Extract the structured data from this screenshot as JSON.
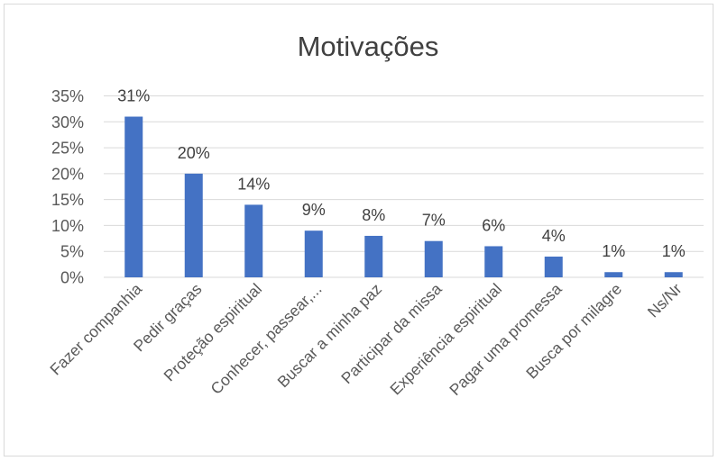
{
  "chart_data": {
    "type": "bar",
    "title": "Motivações",
    "categories": [
      "Fazer companhia",
      "Pedir graças",
      "Proteção espiritual",
      "Conhecer, passear,...",
      "Buscar a minha paz",
      "Participar da missa",
      "Experiência espiritual",
      "Pagar uma promessa",
      "Busca por milagre",
      "Ns/Nr"
    ],
    "values": [
      31,
      20,
      14,
      9,
      8,
      7,
      6,
      4,
      1,
      1
    ],
    "data_labels": [
      "31%",
      "20%",
      "14%",
      "9%",
      "8%",
      "7%",
      "6%",
      "4%",
      "1%",
      "1%"
    ],
    "y_ticks": [
      0,
      5,
      10,
      15,
      20,
      25,
      30,
      35
    ],
    "y_tick_labels": [
      "0%",
      "5%",
      "10%",
      "15%",
      "20%",
      "25%",
      "30%",
      "35%"
    ],
    "ylim": [
      0,
      35
    ],
    "grid": true,
    "legend": "none",
    "bar_color": "#4472c4",
    "grid_color": "#d9d9d9"
  }
}
